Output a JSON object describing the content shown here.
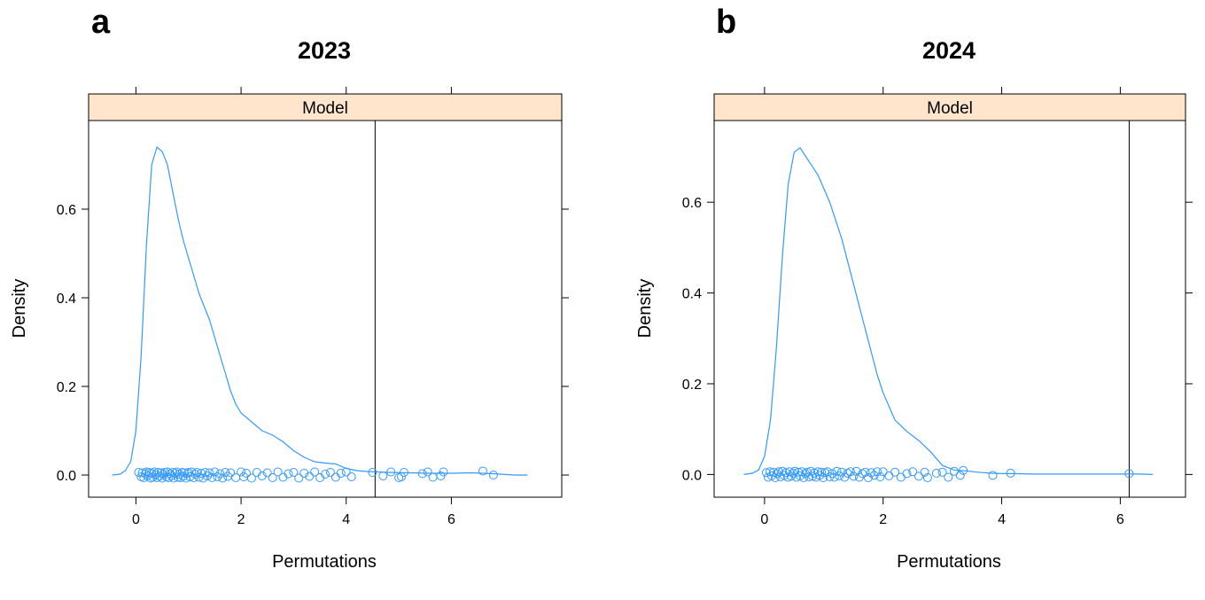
{
  "chart_data": [
    {
      "type": "density",
      "panel_letter": "a",
      "title": "2023",
      "strip_label": "Model",
      "xlabel": "Permutations",
      "ylabel": "Density",
      "xlim": [
        -0.9,
        8.1
      ],
      "ylim": [
        -0.05,
        0.8
      ],
      "xticks": [
        0,
        2,
        4,
        6
      ],
      "yticks": [
        0.0,
        0.2,
        0.4,
        0.6
      ],
      "observed_value": 4.55,
      "colors": {
        "series": "#3399ff",
        "strip": "#ffe5cc",
        "axis": "#000000",
        "reference_line": "#000000"
      },
      "density_curve": {
        "x": [
          -0.45,
          -0.3,
          -0.2,
          -0.1,
          0.0,
          0.1,
          0.2,
          0.3,
          0.4,
          0.5,
          0.6,
          0.7,
          0.8,
          0.9,
          1.0,
          1.1,
          1.2,
          1.3,
          1.4,
          1.5,
          1.6,
          1.7,
          1.8,
          1.9,
          2.0,
          2.2,
          2.4,
          2.6,
          2.8,
          3.0,
          3.2,
          3.4,
          3.6,
          3.8,
          4.0,
          4.2,
          4.4,
          4.8,
          5.2,
          5.6,
          6.0,
          6.4,
          6.8,
          7.2,
          7.45
        ],
        "y": [
          0.0,
          0.002,
          0.01,
          0.03,
          0.1,
          0.27,
          0.52,
          0.7,
          0.74,
          0.73,
          0.7,
          0.64,
          0.58,
          0.53,
          0.49,
          0.45,
          0.41,
          0.38,
          0.35,
          0.31,
          0.27,
          0.23,
          0.19,
          0.16,
          0.14,
          0.12,
          0.1,
          0.09,
          0.075,
          0.055,
          0.04,
          0.03,
          0.027,
          0.025,
          0.015,
          0.01,
          0.008,
          0.006,
          0.005,
          0.004,
          0.004,
          0.005,
          0.003,
          0.0,
          0.0
        ]
      },
      "rug_points": {
        "x": [
          0.05,
          0.1,
          0.12,
          0.15,
          0.18,
          0.2,
          0.22,
          0.25,
          0.28,
          0.3,
          0.32,
          0.35,
          0.38,
          0.4,
          0.42,
          0.45,
          0.48,
          0.5,
          0.52,
          0.55,
          0.58,
          0.6,
          0.62,
          0.65,
          0.68,
          0.7,
          0.72,
          0.75,
          0.78,
          0.8,
          0.82,
          0.85,
          0.88,
          0.9,
          0.92,
          0.95,
          0.98,
          1.0,
          1.03,
          1.06,
          1.1,
          1.13,
          1.16,
          1.2,
          1.24,
          1.28,
          1.32,
          1.36,
          1.4,
          1.45,
          1.5,
          1.55,
          1.6,
          1.65,
          1.7,
          1.75,
          1.8,
          1.9,
          2.0,
          2.05,
          2.1,
          2.2,
          2.3,
          2.4,
          2.5,
          2.6,
          2.7,
          2.8,
          2.9,
          3.0,
          3.1,
          3.2,
          3.3,
          3.4,
          3.5,
          3.6,
          3.7,
          3.8,
          3.9,
          4.0,
          4.1,
          4.5,
          4.7,
          4.85,
          5.0,
          5.05,
          5.1,
          5.45,
          5.55,
          5.65,
          5.8,
          5.85,
          6.6,
          6.8
        ],
        "y": [
          0.006,
          -0.004,
          0.005,
          -0.006,
          0.003,
          0.007,
          -0.002,
          0.006,
          -0.007,
          0.004,
          -0.005,
          0.007,
          0.001,
          -0.006,
          0.006,
          -0.003,
          0.005,
          -0.007,
          0.002,
          0.006,
          -0.004,
          0.007,
          -0.006,
          0.003,
          -0.002,
          0.006,
          -0.007,
          0.004,
          0.007,
          -0.005,
          0.002,
          -0.006,
          0.006,
          -0.003,
          0.005,
          -0.007,
          0.003,
          0.006,
          -0.004,
          0.007,
          -0.006,
          0.002,
          0.006,
          -0.005,
          0.004,
          -0.007,
          0.006,
          -0.002,
          0.005,
          -0.006,
          0.007,
          -0.004,
          0.003,
          -0.007,
          0.006,
          -0.003,
          0.005,
          -0.006,
          0.007,
          -0.004,
          0.004,
          -0.007,
          0.006,
          -0.002,
          0.005,
          -0.006,
          0.007,
          -0.005,
          0.003,
          0.006,
          -0.007,
          0.004,
          -0.003,
          0.007,
          -0.006,
          0.002,
          0.006,
          -0.005,
          0.004,
          0.007,
          -0.004,
          0.006,
          -0.002,
          0.007,
          -0.006,
          -0.004,
          0.006,
          0.003,
          0.007,
          -0.005,
          -0.002,
          0.007,
          0.009,
          0.0
        ]
      }
    },
    {
      "type": "density",
      "panel_letter": "b",
      "title": "2024",
      "strip_label": "Model",
      "xlabel": "Permutations",
      "ylabel": "Density",
      "xlim": [
        -0.85,
        7.1
      ],
      "ylim": [
        -0.05,
        0.78
      ],
      "xticks": [
        0,
        2,
        4,
        6
      ],
      "yticks": [
        0.0,
        0.2,
        0.4,
        0.6
      ],
      "observed_value": 6.15,
      "colors": {
        "series": "#3399ff",
        "strip": "#ffe5cc",
        "axis": "#000000",
        "reference_line": "#000000"
      },
      "density_curve": {
        "x": [
          -0.35,
          -0.2,
          -0.1,
          0.0,
          0.1,
          0.2,
          0.3,
          0.4,
          0.5,
          0.6,
          0.7,
          0.8,
          0.9,
          1.0,
          1.1,
          1.2,
          1.3,
          1.4,
          1.5,
          1.6,
          1.7,
          1.8,
          1.9,
          2.0,
          2.1,
          2.2,
          2.4,
          2.6,
          2.8,
          3.0,
          3.2,
          3.4,
          3.6,
          3.8,
          4.0,
          4.2,
          4.5,
          5.0,
          5.5,
          6.0,
          6.3,
          6.55
        ],
        "y": [
          0.0,
          0.003,
          0.01,
          0.04,
          0.12,
          0.28,
          0.48,
          0.64,
          0.71,
          0.72,
          0.7,
          0.68,
          0.66,
          0.63,
          0.6,
          0.56,
          0.52,
          0.47,
          0.42,
          0.37,
          0.32,
          0.27,
          0.22,
          0.18,
          0.15,
          0.12,
          0.095,
          0.075,
          0.05,
          0.02,
          0.01,
          0.008,
          0.005,
          0.003,
          0.002,
          0.002,
          0.001,
          0.001,
          0.001,
          0.001,
          0.001,
          0.0
        ]
      },
      "rug_points": {
        "x": [
          0.03,
          0.06,
          0.09,
          0.12,
          0.15,
          0.18,
          0.21,
          0.24,
          0.27,
          0.3,
          0.33,
          0.36,
          0.39,
          0.42,
          0.45,
          0.48,
          0.51,
          0.54,
          0.57,
          0.6,
          0.63,
          0.66,
          0.69,
          0.72,
          0.75,
          0.78,
          0.81,
          0.84,
          0.87,
          0.9,
          0.93,
          0.96,
          0.99,
          1.02,
          1.06,
          1.1,
          1.14,
          1.18,
          1.22,
          1.26,
          1.3,
          1.35,
          1.4,
          1.45,
          1.5,
          1.55,
          1.6,
          1.65,
          1.7,
          1.75,
          1.8,
          1.85,
          1.9,
          1.95,
          2.0,
          2.1,
          2.2,
          2.3,
          2.4,
          2.5,
          2.6,
          2.7,
          2.75,
          2.9,
          3.0,
          3.1,
          3.2,
          3.3,
          3.35,
          3.85,
          4.15,
          6.15
        ],
        "y": [
          0.004,
          -0.006,
          0.006,
          -0.003,
          0.005,
          -0.007,
          0.002,
          0.006,
          -0.005,
          0.007,
          -0.002,
          0.004,
          -0.006,
          0.006,
          -0.004,
          0.003,
          0.007,
          -0.006,
          0.005,
          -0.003,
          0.006,
          -0.007,
          0.002,
          0.005,
          -0.005,
          0.007,
          -0.004,
          0.003,
          -0.006,
          0.006,
          -0.002,
          0.005,
          -0.007,
          0.004,
          0.006,
          -0.005,
          0.002,
          -0.006,
          0.007,
          -0.003,
          0.005,
          -0.006,
          0.003,
          0.006,
          -0.004,
          0.007,
          -0.006,
          0.002,
          0.005,
          -0.007,
          0.004,
          -0.002,
          0.006,
          -0.005,
          0.006,
          -0.003,
          0.005,
          -0.006,
          0.002,
          0.006,
          -0.004,
          0.005,
          -0.007,
          0.003,
          0.005,
          -0.006,
          0.007,
          -0.002,
          0.009,
          -0.002,
          0.003,
          0.002
        ]
      }
    }
  ]
}
